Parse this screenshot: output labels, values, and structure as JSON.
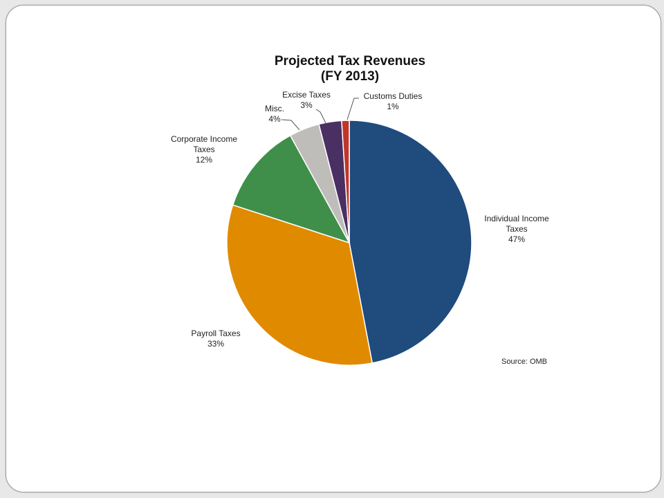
{
  "chart_data": {
    "type": "pie",
    "title": "Projected Tax Revenues",
    "subtitle": "(FY 2013)",
    "slices": [
      {
        "name": "Individual Income Taxes",
        "value": 47,
        "label": "47%",
        "color": "#1f4b7d"
      },
      {
        "name": "Payroll Taxes",
        "value": 33,
        "label": "33%",
        "color": "#e08a00"
      },
      {
        "name": "Corporate Income Taxes",
        "value": 12,
        "label": "12%",
        "color": "#3f8f4a"
      },
      {
        "name": "Misc.",
        "value": 4,
        "label": "4%",
        "color": "#bfbdb9"
      },
      {
        "name": "Excise Taxes",
        "value": 3,
        "label": "3%",
        "color": "#4a2f63"
      },
      {
        "name": "Customs Duties",
        "value": 1,
        "label": "1%",
        "color": "#c0352a"
      }
    ],
    "source": "Source: OMB",
    "start": "12 o'clock",
    "direction": "clockwise"
  }
}
